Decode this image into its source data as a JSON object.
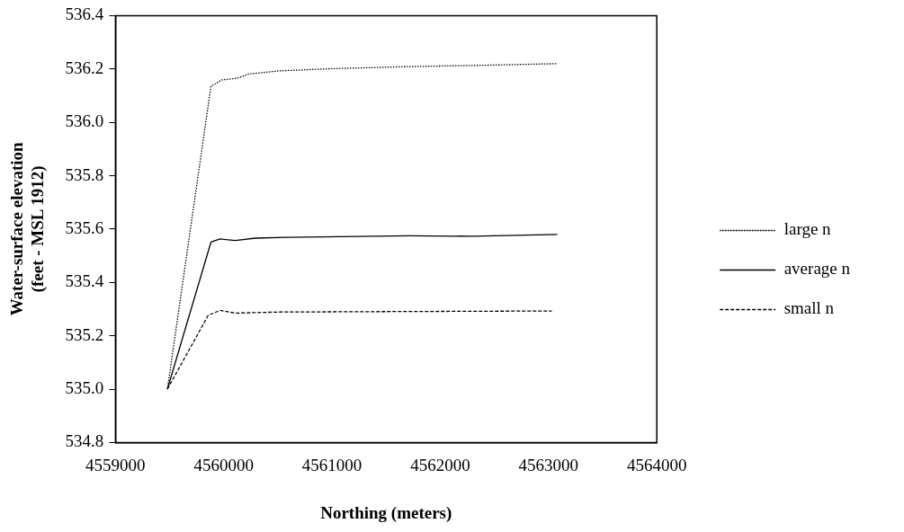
{
  "chart_data": {
    "type": "line",
    "xlabel": "Northing (meters)",
    "ylabel": "Water-surface elevation\n(feet - MSL 1912)",
    "xlim": [
      4559000,
      4564000
    ],
    "xticks": [
      4559000,
      4560000,
      4561000,
      4562000,
      4563000,
      4564000
    ],
    "ylim": [
      534.8,
      536.4
    ],
    "yticks": [
      {
        "value": 534.8,
        "label": "534.8"
      },
      {
        "value": 535,
        "label": "535.0"
      },
      {
        "value": 535.2,
        "label": "535.2"
      },
      {
        "value": 535.4,
        "label": "535.4"
      },
      {
        "value": 535.6,
        "label": "535.6"
      },
      {
        "value": 535.8,
        "label": "535.8"
      },
      {
        "value": 536,
        "label": "536.0"
      },
      {
        "value": 536.2,
        "label": "536.2"
      },
      {
        "value": 536.4,
        "label": "536.4"
      }
    ],
    "grid": false,
    "legend": "right",
    "marker": "none",
    "series": [
      {
        "name": "large n",
        "color": "#000000",
        "line_style": "dotted",
        "x": [
          4559480,
          4559882,
          4559981,
          4560121,
          4560230,
          4560511,
          4560978,
          4561716,
          4562400,
          4563080
        ],
        "values": [
          535.0,
          536.135,
          536.159,
          536.165,
          536.181,
          536.193,
          536.201,
          536.209,
          536.214,
          536.22
        ]
      },
      {
        "name": "average n",
        "color": "#000000",
        "line_style": "solid",
        "x": [
          4559480,
          4559882,
          4559966,
          4560106,
          4560293,
          4560573,
          4561716,
          4562300,
          4563080
        ],
        "values": [
          535.0,
          535.551,
          535.563,
          535.557,
          535.566,
          535.569,
          535.575,
          535.573,
          535.58
        ]
      },
      {
        "name": "small n",
        "color": "#000000",
        "line_style": "dashed",
        "x": [
          4559480,
          4559857,
          4559966,
          4560106,
          4560511,
          4561716,
          4563030
        ],
        "values": [
          535.0,
          535.277,
          535.295,
          535.285,
          535.289,
          535.291,
          535.293
        ]
      }
    ]
  }
}
